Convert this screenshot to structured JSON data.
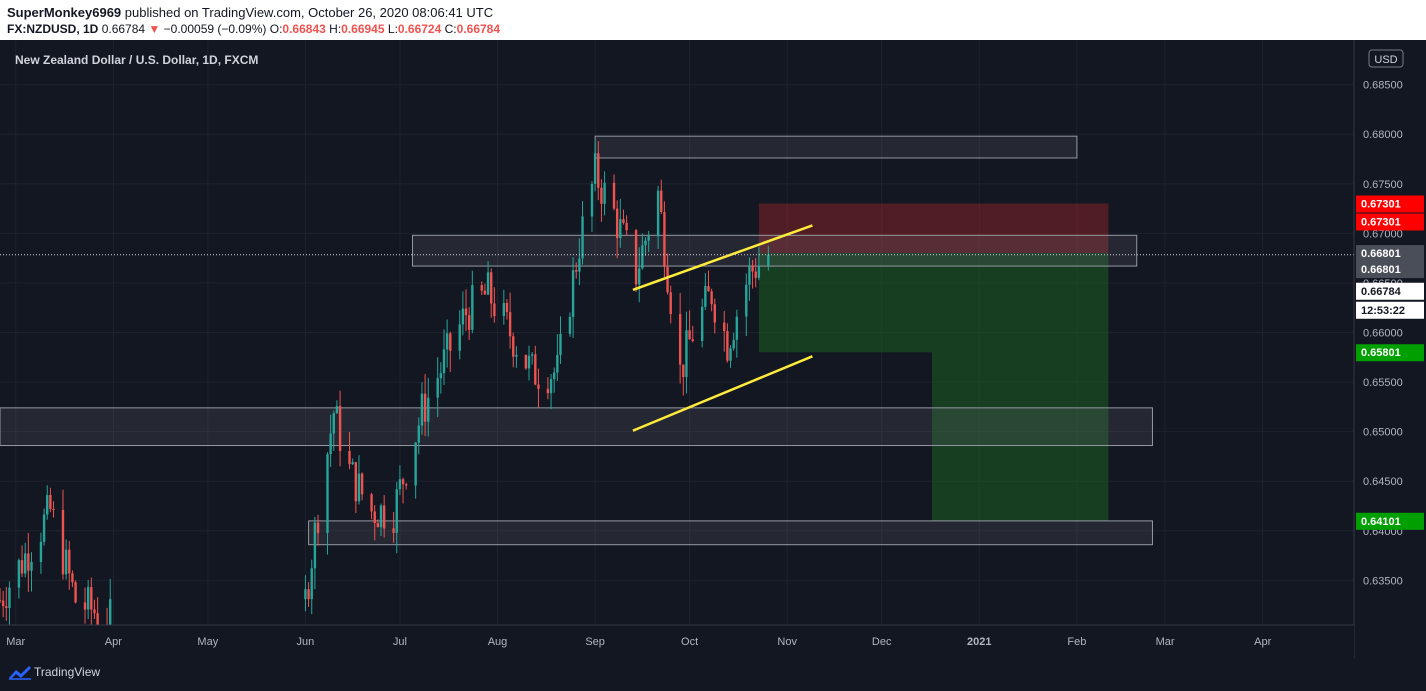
{
  "header": {
    "author": "SuperMonkey6969",
    "published_text": "published on TradingView.com, October 26, 2020 08:06:41 UTC",
    "symbol": "FX:NZDUSD, 1D",
    "last": "0.66784",
    "change": "−0.00059 (−0.09%)",
    "o_label": "O:",
    "o_value": "0.66843",
    "h_label": "H:",
    "h_value": "0.66945",
    "l_label": "L:",
    "l_value": "0.66724",
    "c_label": "C:",
    "c_value": "0.66784"
  },
  "chart_title": "New Zealand Dollar / U.S. Dollar, 1D, FXCM",
  "currency_label": "USD",
  "footer": {
    "brand": "TradingView"
  },
  "colors": {
    "up": "#26a69a",
    "down": "#ef5350",
    "zone": "#787b86",
    "trend": "#ffeb3b",
    "stop": "#c62828",
    "target": "#1b5e20"
  },
  "chart_data": {
    "type": "candlestick",
    "title": "New Zealand Dollar / U.S. Dollar, 1D, FXCM",
    "ylabel": "USD",
    "ylim": [
      0.6305,
      0.6895
    ],
    "x_range": [
      "2020-02-25",
      "2021-04-30"
    ],
    "x_ticks": [
      {
        "label": "Mar",
        "date": "2020-03-01"
      },
      {
        "label": "Apr",
        "date": "2020-04-01"
      },
      {
        "label": "May",
        "date": "2020-05-01"
      },
      {
        "label": "Jun",
        "date": "2020-06-01"
      },
      {
        "label": "Jul",
        "date": "2020-07-01"
      },
      {
        "label": "Aug",
        "date": "2020-08-01"
      },
      {
        "label": "Sep",
        "date": "2020-09-01"
      },
      {
        "label": "Oct",
        "date": "2020-10-01"
      },
      {
        "label": "Nov",
        "date": "2020-11-01"
      },
      {
        "label": "Dec",
        "date": "2020-12-01"
      },
      {
        "label": "2021",
        "date": "2021-01-01"
      },
      {
        "label": "Feb",
        "date": "2021-02-01"
      },
      {
        "label": "Mar",
        "date": "2021-03-01"
      },
      {
        "label": "Apr",
        "date": "2021-04-01"
      }
    ],
    "y_ticks": [
      "0.68500",
      "0.68000",
      "0.67500",
      "0.67000",
      "0.66500",
      "0.66000",
      "0.65500",
      "0.65000",
      "0.64500",
      "0.64000",
      "0.63500"
    ],
    "price_labels": [
      {
        "value": 0.67301,
        "text": "0.67301",
        "color": "#ff0000"
      },
      {
        "value": 0.67301,
        "text": "0.67301",
        "color": "#ff0000",
        "offset": 18
      },
      {
        "value": 0.66801,
        "text": "0.66801",
        "color": "#4a4e59"
      },
      {
        "value": 0.66801,
        "text": "0.66801",
        "color": "#4a4e59",
        "offset": 16
      },
      {
        "value": 0.66784,
        "text": "0.66784",
        "color": "#ffffff",
        "textcolor": "#131722",
        "offset": 36
      },
      {
        "value": 0.66784,
        "text": "12:53:22",
        "color": "#ffffff",
        "textcolor": "#131722",
        "offset": 55
      },
      {
        "value": 0.65801,
        "text": "0.65801",
        "color": "#00a000"
      },
      {
        "value": 0.64101,
        "text": "0.64101",
        "color": "#00a000"
      }
    ],
    "current_price": 0.66784,
    "zones": [
      {
        "x0": "2020-09-01",
        "x1": "2021-02-01",
        "y0": 0.6798,
        "y1": 0.6776
      },
      {
        "x0": "2020-07-05",
        "x1": "2021-02-20",
        "y0": 0.6698,
        "y1": 0.6667
      },
      {
        "x0": "2020-02-25",
        "x1": "2021-02-25",
        "y0": 0.6524,
        "y1": 0.6486
      },
      {
        "x0": "2020-06-02",
        "x1": "2021-02-25",
        "y0": 0.641,
        "y1": 0.6386
      }
    ],
    "trendlines": [
      {
        "x0": "2020-09-13",
        "y0": 0.6643,
        "x1": "2020-11-09",
        "y1": 0.6708
      },
      {
        "x0": "2020-09-13",
        "y0": 0.6501,
        "x1": "2020-11-09",
        "y1": 0.6576
      }
    ],
    "position": {
      "entry": 0.66801,
      "stop": 0.67301,
      "target1": 0.65801,
      "target2": 0.64101,
      "start": "2020-10-23",
      "mid": "2020-12-17",
      "end": "2021-02-11"
    },
    "candles_range": [
      "2020-02-25",
      "2020-10-26"
    ]
  }
}
